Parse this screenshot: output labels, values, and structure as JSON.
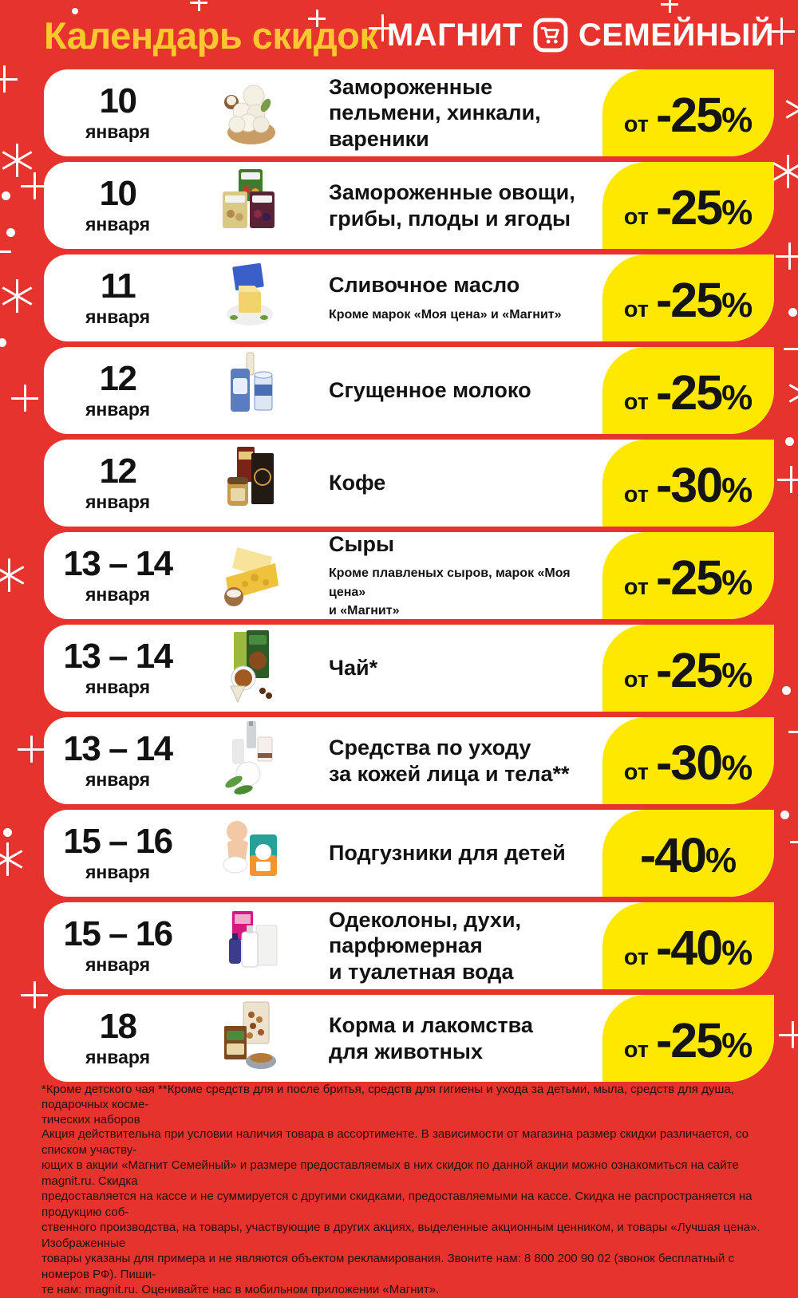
{
  "header": {
    "title": "Календарь скидок",
    "brand_first": "МАГНИТ",
    "brand_second": "СЕМЕЙНЫЙ",
    "brand_icon": "cart-icon"
  },
  "rows": [
    {
      "date": "10",
      "month": "января",
      "title": "Замороженные\nпельмени, хинкали,\nвареники",
      "note": "",
      "discount_prefix": "от",
      "discount": "-25%",
      "image": "pelmeni-icon"
    },
    {
      "date": "10",
      "month": "января",
      "title": "Замороженные овощи,\nгрибы, плоды и ягоды",
      "note": "",
      "discount_prefix": "от",
      "discount": "-25%",
      "image": "frozen-veg-icon"
    },
    {
      "date": "11",
      "month": "января",
      "title": "Сливочное масло",
      "note": "Кроме марок «Моя цена» и «Магнит»",
      "discount_prefix": "от",
      "discount": "-25%",
      "image": "butter-icon"
    },
    {
      "date": "12",
      "month": "января",
      "title": "Сгущенное молоко",
      "note": "",
      "discount_prefix": "от",
      "discount": "-25%",
      "image": "condensed-milk-icon"
    },
    {
      "date": "12",
      "month": "января",
      "title": "Кофе",
      "note": "",
      "discount_prefix": "от",
      "discount": "-30%",
      "image": "coffee-icon"
    },
    {
      "date": "13 – 14",
      "month": "января",
      "title": "Сыры",
      "note": "Кроме плавленых сыров, марок «Моя цена»\nи «Магнит»",
      "discount_prefix": "от",
      "discount": "-25%",
      "image": "cheese-icon"
    },
    {
      "date": "13 – 14",
      "month": "января",
      "title": "Чай*",
      "note": "",
      "discount_prefix": "от",
      "discount": "-25%",
      "image": "tea-icon"
    },
    {
      "date": "13 – 14",
      "month": "января",
      "title": "Средства по уходу\nза кожей лица и тела**",
      "note": "",
      "discount_prefix": "от",
      "discount": "-30%",
      "image": "skincare-icon"
    },
    {
      "date": "15 – 16",
      "month": "января",
      "title": "Подгузники для детей",
      "note": "",
      "discount_prefix": "",
      "discount": "-40%",
      "image": "diapers-icon"
    },
    {
      "date": "15 – 16",
      "month": "января",
      "title": "Одеколоны, духи,\nпарфюмерная\nи туалетная вода",
      "note": "",
      "discount_prefix": "от",
      "discount": "-40%",
      "image": "perfume-icon"
    },
    {
      "date": "18",
      "month": "января",
      "title": "Корма и лакомства\nдля животных",
      "note": "",
      "discount_prefix": "от",
      "discount": "-25%",
      "image": "pet-food-icon"
    }
  ],
  "footnote": "*Кроме детского чая **Кроме средств для и после бритья, средств для гигиены и ухода за детьми, мыла, средств для душа, подарочных косме-\nтических наборов",
  "legal": "Акция действительна при условии наличия товара в ассортименте. В зависимости от магазина размер скидки различается, со списком участву-\nющих в акции «Магнит Семейный» и размере предоставляемых в них скидок по данной акции можно ознакомиться на сайте magnit.ru. Скидка\nпредоставляется на кассе и не суммируется с другими скидками, предоставляемыми на кассе. Скидка не распространяется на продукцию соб-\nственного производства, на товары, участвующие в других акциях, выделенные акционным ценником, и товары «Лучшая цена». Изображенные\nтовары указаны для примера и не являются объектом рекламирования. Звоните нам: 8 800 200 90 02 (звонок бесплатный с номеров РФ). Пиши-\nте нам: magnit.ru. Оценивайте нас в мобильном приложении «Магнит».",
  "phone": "8 800 200 90 02",
  "colors": {
    "background_red": "#e6332d",
    "badge_yellow": "#ffe800",
    "title_gold": "#fdc72f",
    "card_white": "#ffffff",
    "text_black": "#141414"
  }
}
